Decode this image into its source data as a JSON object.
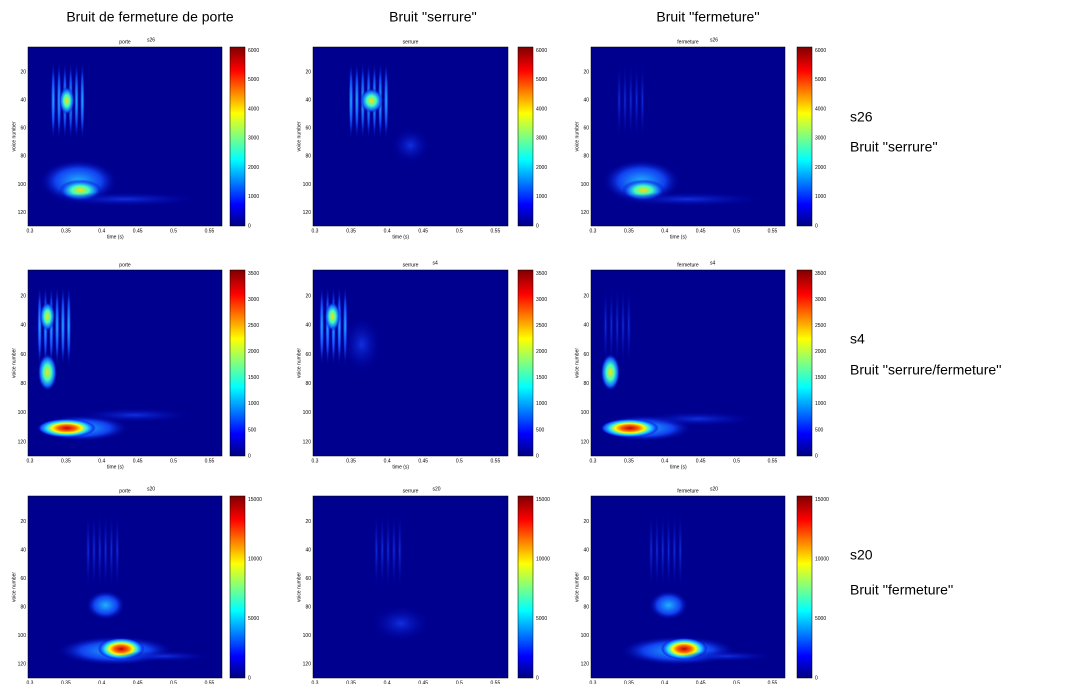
{
  "columns": [
    "Bruit de fermeture de porte",
    "Bruit ''serrure''",
    "Bruit ''fermeture''"
  ],
  "rows": [
    {
      "label": "s26",
      "caption": "Bruit ''serrure''"
    },
    {
      "label": "s4",
      "caption": "Bruit ''serrure/fermeture''"
    },
    {
      "label": "s20",
      "caption": "Bruit ''fermeture''"
    }
  ],
  "axes": {
    "xlabel": "time (s)",
    "ylabel": "voice number",
    "xticks": [
      "0.3",
      "0.35",
      "0.4",
      "0.45",
      "0.5",
      "0.55"
    ],
    "yticks": [
      "20",
      "40",
      "60",
      "80",
      "100",
      "120"
    ]
  },
  "panels": [
    [
      {
        "title": "porte",
        "tag": "s26",
        "colorbar": [
          "6000",
          "5000",
          "4000",
          "3000",
          "2000",
          "1000",
          "0"
        ]
      },
      {
        "title": "serrure",
        "colorbar": [
          "6000",
          "5000",
          "4000",
          "3000",
          "2000",
          "1000",
          "0"
        ]
      },
      {
        "title": "fermeture",
        "tag": "s26",
        "colorbar": [
          "6000",
          "5000",
          "4000",
          "3000",
          "2000",
          "1000",
          "0"
        ]
      }
    ],
    [
      {
        "title": "porte",
        "colorbar": [
          "3500",
          "3000",
          "2500",
          "2000",
          "1500",
          "1000",
          "500",
          "0"
        ]
      },
      {
        "title": "serrure",
        "tag": "s4",
        "colorbar": [
          "3500",
          "3000",
          "2500",
          "2000",
          "1500",
          "1000",
          "500",
          "0"
        ]
      },
      {
        "title": "fermeture",
        "tag": "s4",
        "colorbar": [
          "3500",
          "3000",
          "2500",
          "2000",
          "1500",
          "1000",
          "500",
          "0"
        ]
      }
    ],
    [
      {
        "title": "porte",
        "tag": "s20",
        "colorbar": [
          "15000",
          "10000",
          "5000",
          "0"
        ]
      },
      {
        "title": "serrure",
        "tag": "s20",
        "colorbar": [
          "15000",
          "10000",
          "5000",
          "0"
        ]
      },
      {
        "title": "fermeture",
        "tag": "s20",
        "colorbar": [
          "15000",
          "10000",
          "5000",
          "0"
        ]
      }
    ]
  ]
}
